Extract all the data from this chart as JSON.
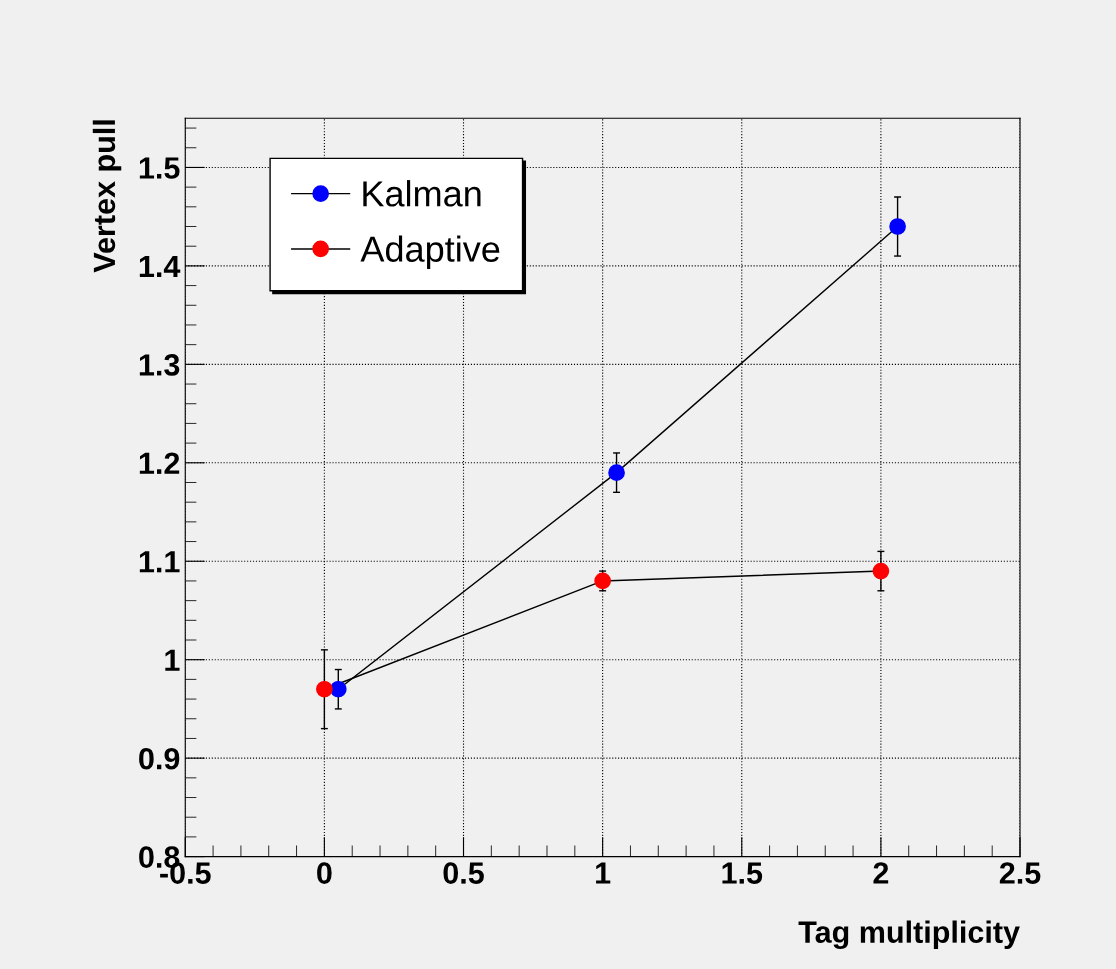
{
  "chart_data": {
    "type": "line",
    "xlabel": "Tag multiplicity",
    "ylabel": "Vertex pull",
    "xlim": [
      -0.5,
      2.5
    ],
    "xticks": [
      -0.5,
      0,
      0.5,
      1,
      1.5,
      2,
      2.5
    ],
    "ylim": [
      0.8,
      1.55
    ],
    "yticks": [
      0.8,
      0.9,
      1,
      1.1,
      1.2,
      1.3,
      1.4,
      1.5
    ],
    "grid": true,
    "legend": "top left",
    "marker": "circle",
    "line_style": "solid",
    "series": [
      {
        "name": "Kalman",
        "color": "#0000ff",
        "x": [
          0.05,
          1.05,
          2.06
        ],
        "values": [
          0.97,
          1.19,
          1.44
        ],
        "errors": [
          0.02,
          0.02,
          0.03
        ]
      },
      {
        "name": "Adaptive",
        "color": "#ff0000",
        "x": [
          0,
          1,
          2
        ],
        "values": [
          0.97,
          1.08,
          1.09
        ],
        "errors": [
          0.04,
          0.01,
          0.02
        ]
      }
    ]
  }
}
